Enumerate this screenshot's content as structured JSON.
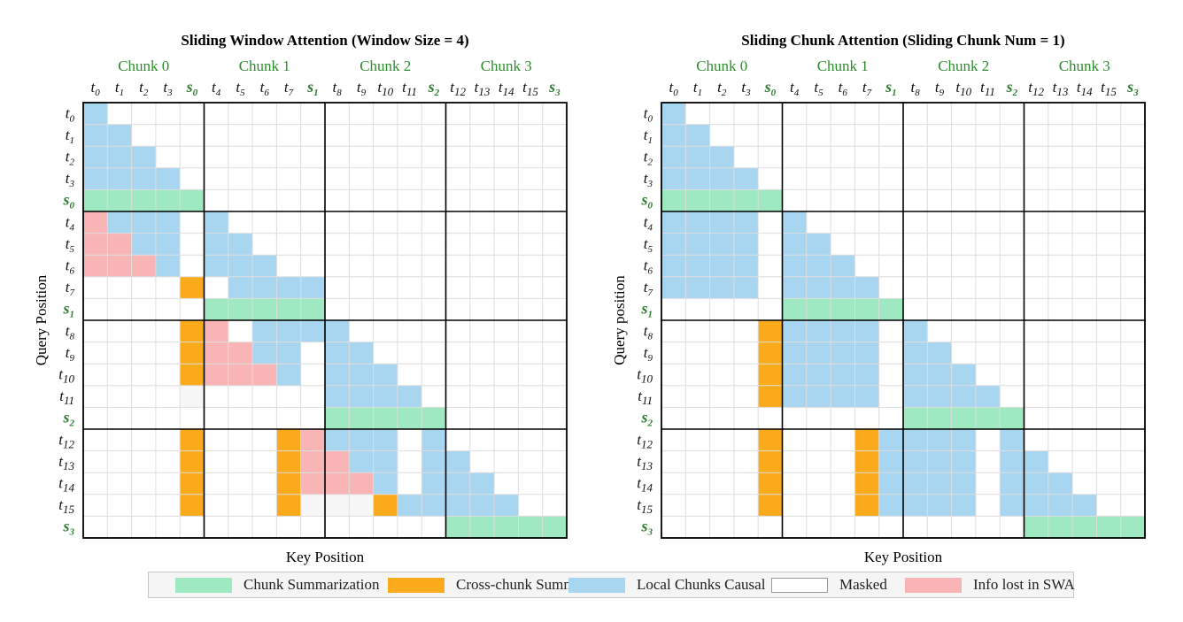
{
  "colors": {
    "summarization": "#9ee8c2",
    "cross_chunk": "#fbaa1c",
    "local_causal": "#a8d5f0",
    "masked": "#ffffff",
    "info_lost": "#f9b4b6",
    "grid": "#dedede",
    "chunk_label": "#2e8b2e",
    "summary_token": "#2e7d32"
  },
  "panels": [
    {
      "title": "Sliding Window Attention (Window Size = 4)",
      "chunk_labels": [
        "Chunk 0",
        "Chunk 1",
        "Chunk 2",
        "Chunk 3"
      ],
      "column_tokens": [
        "t0",
        "t1",
        "t2",
        "t3",
        "s0",
        "t4",
        "t5",
        "t6",
        "t7",
        "s1",
        "t8",
        "t9",
        "t10",
        "t11",
        "s2",
        "t12",
        "t13",
        "t14",
        "t15",
        "s3"
      ],
      "row_tokens": [
        "t0",
        "t1",
        "t2",
        "t3",
        "s0",
        "t4",
        "t5",
        "t6",
        "t7",
        "s1",
        "t8",
        "t9",
        "t10",
        "t11",
        "s2",
        "t12",
        "t13",
        "t14",
        "t15",
        "s3"
      ],
      "ylabel": "Query Position",
      "xlabel": "Key Position",
      "cells": [
        "B...................",
        "BB..................",
        "BBB.................",
        "BBBB................",
        "GGGGG...............",
        "PBBB.B..............",
        "PPBB.BB.............",
        "PPPB.BBB............",
        "....O.BBBB..........",
        ".....GGGGG..........",
        "....OP.BBBB.........",
        "....OPPBB.BB........",
        "....OPPPB.BBB.......",
        "....M.....BBBB......",
        "..........GGGGG.....",
        "....O...OPBBB.B.....",
        "....O...OPPBB.BB....",
        "....O...OPPPB.BBB...",
        "....O...OMMMOBBBBB..",
        "...............GGGGG"
      ]
    },
    {
      "title": "Sliding Chunk Attention (Sliding Chunk Num = 1)",
      "chunk_labels": [
        "Chunk 0",
        "Chunk 1",
        "Chunk 2",
        "Chunk 3"
      ],
      "column_tokens": [
        "t0",
        "t1",
        "t2",
        "t3",
        "s0",
        "t4",
        "t5",
        "t6",
        "t7",
        "s1",
        "t8",
        "t9",
        "t10",
        "t11",
        "s2",
        "t12",
        "t13",
        "t14",
        "t15",
        "s3"
      ],
      "row_tokens": [
        "t0",
        "t1",
        "t2",
        "t3",
        "s0",
        "t4",
        "t5",
        "t6",
        "t7",
        "s1",
        "t8",
        "t9",
        "t10",
        "t11",
        "s2",
        "t12",
        "t13",
        "t14",
        "t15",
        "s3"
      ],
      "ylabel": "Query position",
      "xlabel": "Key Position",
      "cells": [
        "B...................",
        "BB..................",
        "BBB.................",
        "BBBB................",
        "GGGGG...............",
        "BBBB.B..............",
        "BBBB.BB.............",
        "BBBB.BBB............",
        "BBBB.BBBB...........",
        ".....GGGGG..........",
        "....OBBBB.B.........",
        "....OBBBB.BB........",
        "....OBBBB.BBB.......",
        "....OBBBB.BBBB......",
        "..........GGGGG.....",
        "....O...OBBBB.B.....",
        "....O...OBBBB.BB....",
        "....O...OBBBB.BBB...",
        "....O...OBBBB.BBBB..",
        "...............GGGGG"
      ]
    }
  ],
  "legend": [
    {
      "key": "summarization",
      "label": "Chunk Summarization"
    },
    {
      "key": "cross_chunk",
      "label": "Cross-chunk Summary"
    },
    {
      "key": "local_causal",
      "label": "Local Chunks Causal"
    },
    {
      "key": "masked",
      "label": "Masked"
    },
    {
      "key": "info_lost",
      "label": "Info lost in SWA"
    }
  ]
}
